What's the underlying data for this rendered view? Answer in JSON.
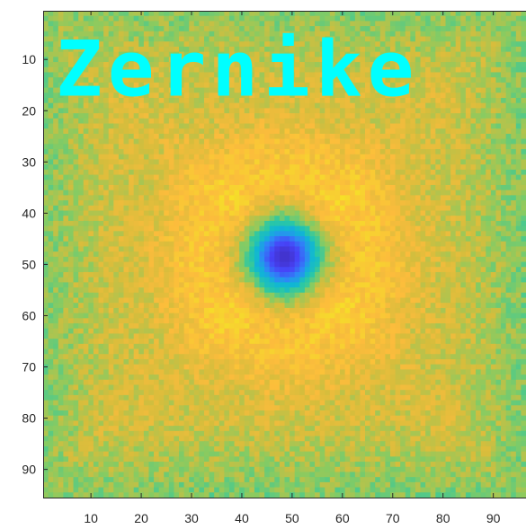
{
  "chart_data": {
    "type": "heatmap",
    "title": "",
    "xlabel": "",
    "ylabel": "",
    "xlim": [
      0.5,
      96.5
    ],
    "ylim": [
      0.5,
      95.5
    ],
    "y_direction": "reversed",
    "grid": false,
    "colorbar": false,
    "colormap": "parula",
    "colormap_stops": [
      "#3e26a8",
      "#4743f8",
      "#2e87f7",
      "#10b6d4",
      "#2bc8a4",
      "#87cb62",
      "#d6bd3c",
      "#fcbc3c",
      "#f6d92c",
      "#f9fb14"
    ],
    "x_ticks": [
      10,
      20,
      30,
      40,
      50,
      60,
      70,
      80,
      90
    ],
    "x_tick_labels": [
      "10",
      "20",
      "30",
      "40",
      "50",
      "60",
      "70",
      "80",
      "90"
    ],
    "y_ticks": [
      10,
      20,
      30,
      40,
      50,
      60,
      70,
      80,
      90
    ],
    "y_tick_labels": [
      "10",
      "20",
      "30",
      "40",
      "50",
      "60",
      "70",
      "80",
      "90"
    ],
    "grid_size": [
      96,
      95
    ],
    "background_level": 0.66,
    "edge_level": 0.55,
    "spot": {
      "center_x": 48.5,
      "center_y": 48.5,
      "core_level": 0.05,
      "radius": 7.5
    },
    "halo_level": 0.85,
    "annotation": {
      "text": "Zernike",
      "x": 3,
      "y": 15,
      "color": "#00ffff"
    }
  }
}
